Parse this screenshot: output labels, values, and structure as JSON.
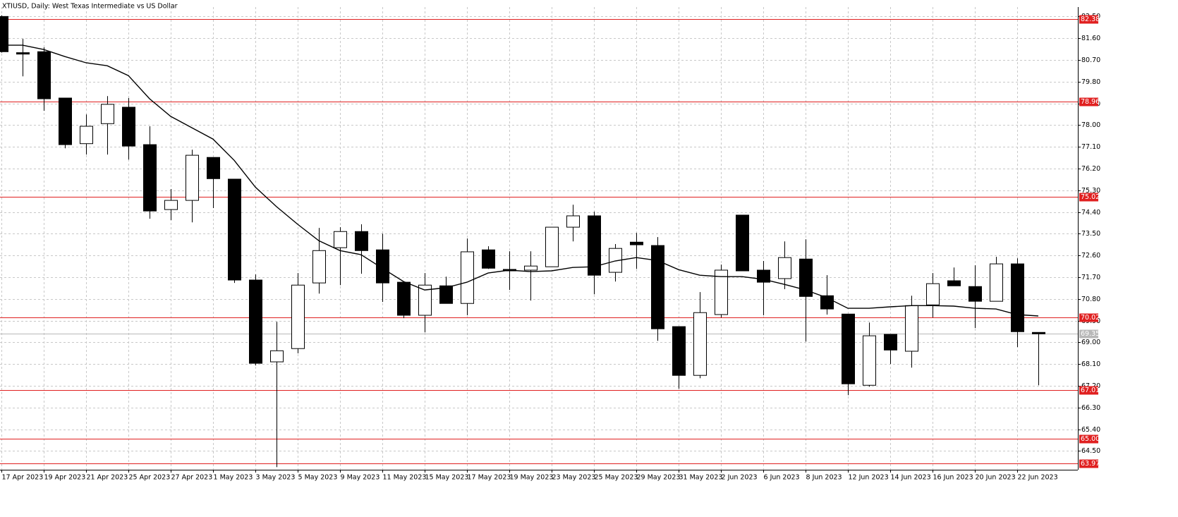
{
  "chart_data": {
    "type": "candlestick",
    "title": "XTIUSD, Daily:  West Texas Intermediate vs US Dollar",
    "categories": [
      "17 Apr 2023",
      null,
      "19 Apr 2023",
      null,
      "21 Apr 2023",
      null,
      "25 Apr 2023",
      null,
      "27 Apr 2023",
      null,
      "1 May 2023",
      null,
      "3 May 2023",
      null,
      "5 May 2023",
      null,
      "9 May 2023",
      null,
      "11 May 2023",
      null,
      "15 May 2023",
      null,
      "17 May 2023",
      null,
      "19 May 2023",
      null,
      "23 May 2023",
      null,
      "25 May 2023",
      null,
      "29 May 2023",
      null,
      "31 May 2023",
      null,
      "2 Jun 2023",
      null,
      "6 Jun 2023",
      null,
      "8 Jun 2023",
      null,
      "12 Jun 2023",
      null,
      "14 Jun 2023",
      null,
      "16 Jun 2023",
      null,
      "20 Jun 2023",
      null,
      "22 Jun 2023",
      null
    ],
    "open": [
      82.5,
      81.0,
      81.04,
      79.12,
      77.23,
      78.06,
      78.74,
      77.19,
      74.5,
      74.88,
      76.66,
      75.76,
      71.58,
      68.19,
      68.74,
      71.46,
      72.92,
      73.59,
      72.83,
      71.49,
      70.12,
      71.34,
      70.61,
      72.83,
      72.02,
      71.99,
      72.13,
      73.77,
      74.24,
      71.9,
      73.15,
      73.01,
      69.65,
      67.63,
      70.15,
      74.27,
      71.99,
      71.64,
      72.45,
      70.93,
      70.17,
      67.22,
      69.33,
      68.63,
      70.55,
      71.55,
      71.31,
      70.7,
      72.25,
      69.41
    ],
    "high": [
      82.55,
      81.57,
      81.22,
      79.12,
      78.44,
      79.2,
      79.12,
      77.95,
      75.35,
      76.98,
      76.66,
      75.76,
      71.81,
      69.85,
      71.87,
      73.74,
      73.77,
      73.89,
      73.5,
      71.49,
      71.87,
      71.72,
      73.3,
      72.98,
      72.77,
      72.77,
      73.77,
      74.7,
      74.41,
      73.07,
      73.53,
      73.36,
      69.65,
      71.08,
      72.22,
      74.27,
      72.37,
      73.18,
      73.27,
      71.78,
      70.17,
      69.82,
      69.33,
      70.93,
      71.87,
      72.1,
      72.19,
      72.54,
      72.48,
      69.41
    ],
    "low": [
      81.0,
      80.02,
      78.59,
      77.04,
      76.78,
      76.78,
      76.57,
      74.12,
      74.06,
      73.97,
      74.56,
      71.46,
      68.04,
      63.83,
      68.54,
      71.02,
      71.37,
      71.84,
      70.67,
      70.0,
      69.41,
      70.61,
      70.12,
      72.04,
      71.17,
      70.73,
      72.13,
      73.18,
      70.99,
      71.52,
      72.04,
      69.06,
      67.08,
      67.51,
      70.03,
      71.96,
      70.12,
      71.2,
      69.03,
      70.15,
      66.81,
      67.16,
      68.1,
      67.95,
      70.03,
      71.34,
      69.59,
      70.7,
      68.8,
      67.22
    ],
    "close": [
      81.04,
      80.96,
      79.09,
      77.19,
      77.95,
      78.86,
      77.13,
      74.44,
      74.88,
      76.75,
      75.78,
      71.58,
      68.13,
      68.65,
      71.37,
      72.8,
      73.59,
      72.8,
      71.46,
      70.12,
      71.37,
      70.61,
      72.75,
      72.07,
      71.96,
      72.16,
      73.77,
      74.24,
      71.78,
      72.89,
      73.04,
      69.56,
      67.63,
      70.23,
      71.99,
      71.96,
      71.49,
      72.51,
      70.9,
      70.38,
      67.28,
      69.27,
      68.68,
      70.52,
      71.43,
      71.34,
      70.7,
      72.25,
      69.44,
      69.35
    ],
    "up_color": "#ffffff",
    "down_color": "#000000",
    "line_series": {
      "color": "#000000",
      "values": [
        81.31,
        81.31,
        81.13,
        80.84,
        80.58,
        80.46,
        80.05,
        79.09,
        78.36,
        77.89,
        77.42,
        76.54,
        75.43,
        74.62,
        73.89,
        73.21,
        72.8,
        72.63,
        72.07,
        71.52,
        71.17,
        71.26,
        71.49,
        71.87,
        71.99,
        71.93,
        71.96,
        72.1,
        72.13,
        72.37,
        72.51,
        72.39,
        72.01,
        71.78,
        71.72,
        71.72,
        71.61,
        71.4,
        71.17,
        70.85,
        70.41,
        70.41,
        70.47,
        70.52,
        70.52,
        70.5,
        70.41,
        70.38,
        70.15,
        70.09
      ]
    },
    "levels": [
      82.38,
      78.96,
      75.02,
      70.02,
      67.01,
      {
        "value": 65.0,
        "label": "65.00"
      },
      63.97
    ],
    "level_color": "#e02020",
    "last_price": 69.35,
    "last_price_color": "#b8b8b8",
    "ylim": [
      63.72,
      82.89
    ],
    "yticks": [
      {
        "value": 64.5,
        "label": "64.50"
      },
      {
        "value": 65.4,
        "label": "65.40"
      },
      {
        "value": 66.3,
        "label": "66.30"
      },
      {
        "value": 67.2,
        "label": "67.20"
      },
      {
        "value": 68.1,
        "label": "68.10"
      },
      {
        "value": 69.0,
        "label": "69.00"
      },
      {
        "value": 69.9,
        "label": "69.90"
      },
      {
        "value": 70.8,
        "label": "70.80"
      },
      {
        "value": 71.7,
        "label": "71.70"
      },
      {
        "value": 72.6,
        "label": "72.60"
      },
      {
        "value": 73.5,
        "label": "73.50"
      },
      {
        "value": 74.4,
        "label": "74.40"
      },
      {
        "value": 75.3,
        "label": "75.30"
      },
      {
        "value": 76.2,
        "label": "76.20"
      },
      {
        "value": 77.1,
        "label": "77.10"
      },
      {
        "value": 78.0,
        "label": "78.00"
      },
      {
        "value": 78.9,
        "label": "78.90"
      },
      {
        "value": 79.8,
        "label": "79.80"
      },
      {
        "value": 80.7,
        "label": "80.70"
      },
      {
        "value": 81.6,
        "label": "81.60"
      },
      {
        "value": 82.5,
        "label": "82.50"
      }
    ],
    "grid": true
  }
}
